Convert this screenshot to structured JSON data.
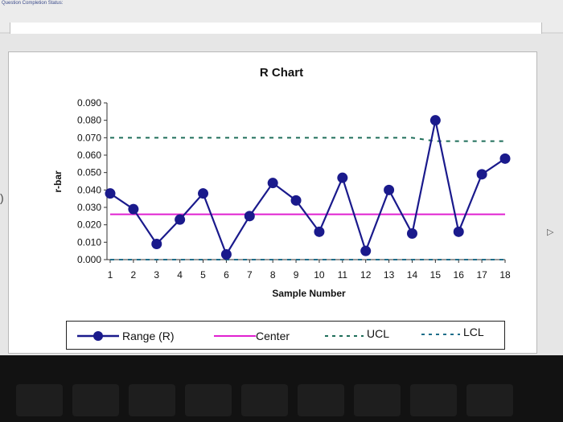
{
  "status_text": "Question Completion Status:",
  "chart_data": {
    "type": "line",
    "title": "R Chart",
    "xlabel": "Sample Number",
    "ylabel": "r-bar",
    "x": [
      1,
      2,
      3,
      4,
      5,
      6,
      7,
      8,
      9,
      10,
      11,
      12,
      13,
      14,
      15,
      16,
      17,
      18
    ],
    "xticks": [
      "1",
      "2",
      "3",
      "4",
      "5",
      "6",
      "7",
      "8",
      "9",
      "10",
      "11",
      "12",
      "13",
      "14",
      "15",
      "16",
      "17",
      "18"
    ],
    "ylim": [
      0,
      0.09
    ],
    "yticks": [
      "0.000",
      "0.010",
      "0.020",
      "0.030",
      "0.040",
      "0.050",
      "0.060",
      "0.070",
      "0.080",
      "0.090"
    ],
    "series": [
      {
        "name": "Range (R)",
        "values": [
          0.038,
          0.029,
          0.009,
          0.023,
          0.038,
          0.003,
          0.025,
          0.044,
          0.034,
          0.016,
          0.047,
          0.005,
          0.04,
          0.015,
          0.08,
          0.016,
          0.049,
          0.058
        ],
        "color": "#1a1a8c",
        "marker": "circle"
      },
      {
        "name": "Center",
        "values": [
          0.026,
          0.026,
          0.026,
          0.026,
          0.026,
          0.026,
          0.026,
          0.026,
          0.026,
          0.026,
          0.026,
          0.026,
          0.026,
          0.026,
          0.026,
          0.026,
          0.026,
          0.026
        ],
        "color": "#e020d0"
      },
      {
        "name": "UCL",
        "values": [
          0.07,
          0.07,
          0.07,
          0.07,
          0.07,
          0.07,
          0.07,
          0.07,
          0.07,
          0.07,
          0.07,
          0.07,
          0.07,
          0.07,
          0.068,
          0.068,
          0.068,
          0.068
        ],
        "color": "#1f6e5a",
        "dash": true
      },
      {
        "name": "LCL",
        "values": [
          0,
          0,
          0,
          0,
          0,
          0,
          0,
          0,
          0,
          0,
          0,
          0,
          0,
          0,
          0,
          0,
          0,
          0
        ],
        "color": "#1f6e8a",
        "dash": true
      }
    ],
    "grid": false,
    "legend_position": "bottom"
  },
  "legend": {
    "range_label": "Range (R)",
    "center_label": "Center",
    "ucl_label": "UCL",
    "lcl_label": "LCL"
  },
  "colors": {
    "range": "#1a1a8c",
    "center": "#e020d0",
    "ucl": "#1f6e5a",
    "lcl": "#1f6e8a"
  }
}
